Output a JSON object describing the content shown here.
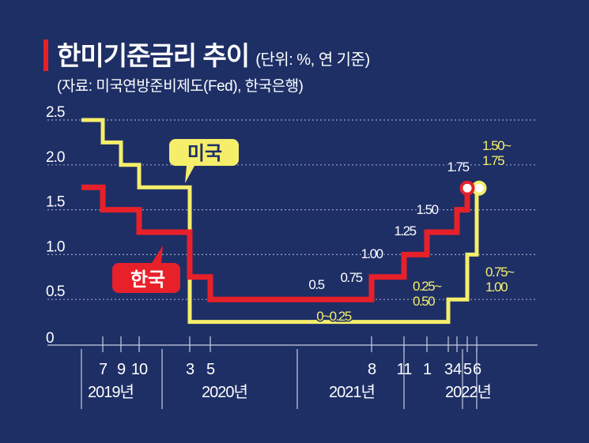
{
  "header": {
    "title": "한미기준금리 추이",
    "unit": "(단위: %, 연 기준)",
    "source": "(자료: 미국연방준비제도(Fed), 한국은행)"
  },
  "colors": {
    "background": "#1e2f66",
    "korea": "#e8202a",
    "usa": "#f5ee6b",
    "grid": "#9aa3c4",
    "text": "#ffffff"
  },
  "chart_data": {
    "type": "line",
    "title": "한미기준금리 추이",
    "ylim": [
      0,
      2.5
    ],
    "ytick_labels": [
      "0",
      "0.5",
      "1.0",
      "1.5",
      "2.0",
      "2.5"
    ],
    "grid": true,
    "x_tick_labels": [
      {
        "label": "7",
        "date": "2019-07"
      },
      {
        "label": "9",
        "date": "2019-09"
      },
      {
        "label": "10",
        "date": "2019-10"
      },
      {
        "label": "3",
        "date": "2020-03"
      },
      {
        "label": "5",
        "date": "2020-05"
      },
      {
        "label": "8",
        "date": "2021-08"
      },
      {
        "label": "11",
        "date": "2021-11"
      },
      {
        "label": "1",
        "date": "2022-01"
      },
      {
        "label": "3",
        "date": "2022-03"
      },
      {
        "label": "4",
        "date": "2022-04"
      },
      {
        "label": "5",
        "date": "2022-05"
      },
      {
        "label": "6",
        "date": "2022-06"
      }
    ],
    "year_labels": [
      "2019년",
      "2020년",
      "2021년",
      "2022년"
    ],
    "series": [
      {
        "name": "미국",
        "color": "#f5ee6b",
        "points": [
          {
            "x": "2019-01",
            "y": 2.5
          },
          {
            "x": "2019-07",
            "y": 2.25
          },
          {
            "x": "2019-09",
            "y": 2.0
          },
          {
            "x": "2019-10",
            "y": 1.75
          },
          {
            "x": "2020-03",
            "y": 0.25
          },
          {
            "x": "2022-03",
            "y": 0.5
          },
          {
            "x": "2022-05",
            "y": 1.0
          },
          {
            "x": "2022-06",
            "y": 1.75
          }
        ],
        "value_labels": [
          {
            "text": "0~0.25"
          },
          {
            "text": "0.25~\n0.50"
          },
          {
            "text": "0.75~\n1.00"
          },
          {
            "text": "1.50~\n1.75"
          }
        ]
      },
      {
        "name": "한국",
        "color": "#e8202a",
        "points": [
          {
            "x": "2019-01",
            "y": 1.75
          },
          {
            "x": "2019-07",
            "y": 1.5
          },
          {
            "x": "2019-10",
            "y": 1.25
          },
          {
            "x": "2020-03",
            "y": 0.75
          },
          {
            "x": "2020-05",
            "y": 0.5
          },
          {
            "x": "2021-08",
            "y": 0.75
          },
          {
            "x": "2021-11",
            "y": 1.0
          },
          {
            "x": "2022-01",
            "y": 1.25
          },
          {
            "x": "2022-04",
            "y": 1.5
          },
          {
            "x": "2022-05",
            "y": 1.75
          }
        ],
        "value_labels": [
          {
            "text": "0.5"
          },
          {
            "text": "0.75"
          },
          {
            "text": "1.00"
          },
          {
            "text": "1.25"
          },
          {
            "text": "1.50"
          },
          {
            "text": "1.75"
          }
        ]
      }
    ]
  }
}
